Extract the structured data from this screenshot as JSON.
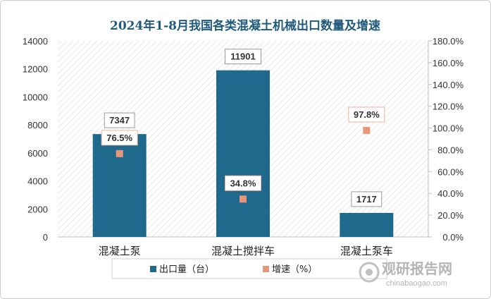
{
  "chart_data": {
    "type": "bar",
    "title": "2024年1-8月我国各类混凝土机械出口数量及增速",
    "categories": [
      "混凝土泵",
      "混凝土搅拌车",
      "混凝土泵车"
    ],
    "series": [
      {
        "name": "出口量（台）",
        "type": "bar",
        "axis": "left",
        "values": [
          7347,
          11901,
          1717
        ],
        "labels": [
          "7347",
          "11901",
          "1717"
        ],
        "color": "#1f6a8c"
      },
      {
        "name": "增速（%）",
        "type": "scatter",
        "axis": "right",
        "values": [
          76.5,
          34.8,
          97.8
        ],
        "labels": [
          "76.5%",
          "34.8%",
          "97.8%"
        ],
        "color": "#e8967a"
      }
    ],
    "y_left": {
      "min": 0,
      "max": 14000,
      "ticks": [
        "0",
        "2000",
        "4000",
        "6000",
        "8000",
        "10000",
        "12000",
        "14000"
      ]
    },
    "y_right": {
      "min": 0,
      "max": 180,
      "ticks": [
        "0.0%",
        "20.0%",
        "40.0%",
        "60.0%",
        "80.0%",
        "100.0%",
        "120.0%",
        "140.0%",
        "160.0%",
        "180.0%"
      ]
    },
    "grid": false,
    "legend_position": "bottom"
  },
  "watermark": {
    "name": "观研报告网",
    "url": "chinabaogao.com"
  }
}
